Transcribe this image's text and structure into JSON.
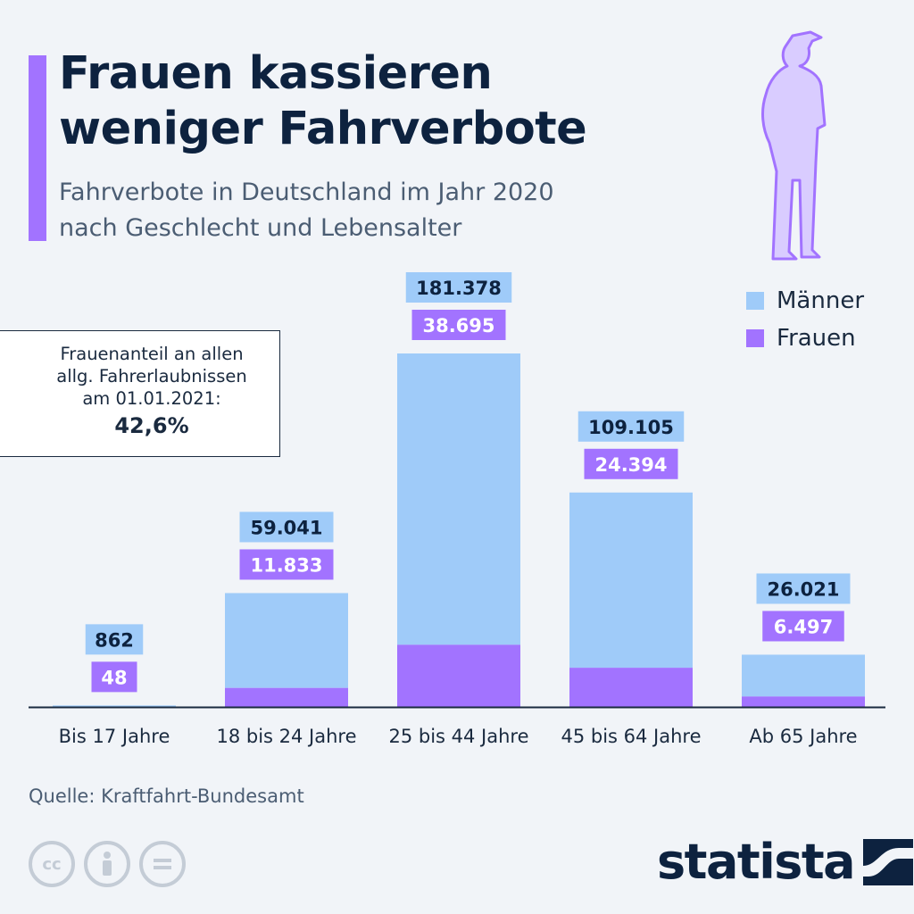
{
  "title": "Frauen kassieren weniger Fahrverbote",
  "subtitle_line1": "Fahrverbote in Deutschland im Jahr 2020",
  "subtitle_line2": "nach Geschlecht und Lebensalter",
  "info_box": {
    "line1": "Frauenanteil an allen",
    "line2": "allg. Fahrerlaubnissen",
    "line3": "am 01.01.2021:",
    "value": "42,6%"
  },
  "source": "Quelle: Kraftfahrt-Bundesamt",
  "logo_text": "statista",
  "icons": {
    "cc": "cc",
    "by": "person-icon",
    "nd": "equals-icon",
    "figure": "police-officer-silhouette"
  },
  "colors": {
    "maenner": "#9fcbf9",
    "frauen": "#a273ff",
    "label_maenner_bg": "#9fcbf9",
    "label_frauen_bg": "#a273ff",
    "axis": "#1a2a3f"
  },
  "chart_data": {
    "type": "bar",
    "stacked": true,
    "categories": [
      "Bis 17 Jahre",
      "18 bis 24 Jahre",
      "25 bis 44 Jahre",
      "45 bis 64 Jahre",
      "Ab 65 Jahre"
    ],
    "series": [
      {
        "name": "Männer",
        "values": [
          862,
          59041,
          181378,
          109105,
          26021
        ],
        "labels": [
          "862",
          "59.041",
          "181.378",
          "109.105",
          "26.021"
        ]
      },
      {
        "name": "Frauen",
        "values": [
          48,
          11833,
          38695,
          24394,
          6497
        ],
        "labels": [
          "48",
          "11.833",
          "38.695",
          "24.394",
          "6.497"
        ]
      }
    ],
    "legend": [
      "Männer",
      "Frauen"
    ],
    "legend_position": "top-right",
    "grid": false,
    "ylim": [
      0,
      220073
    ]
  }
}
